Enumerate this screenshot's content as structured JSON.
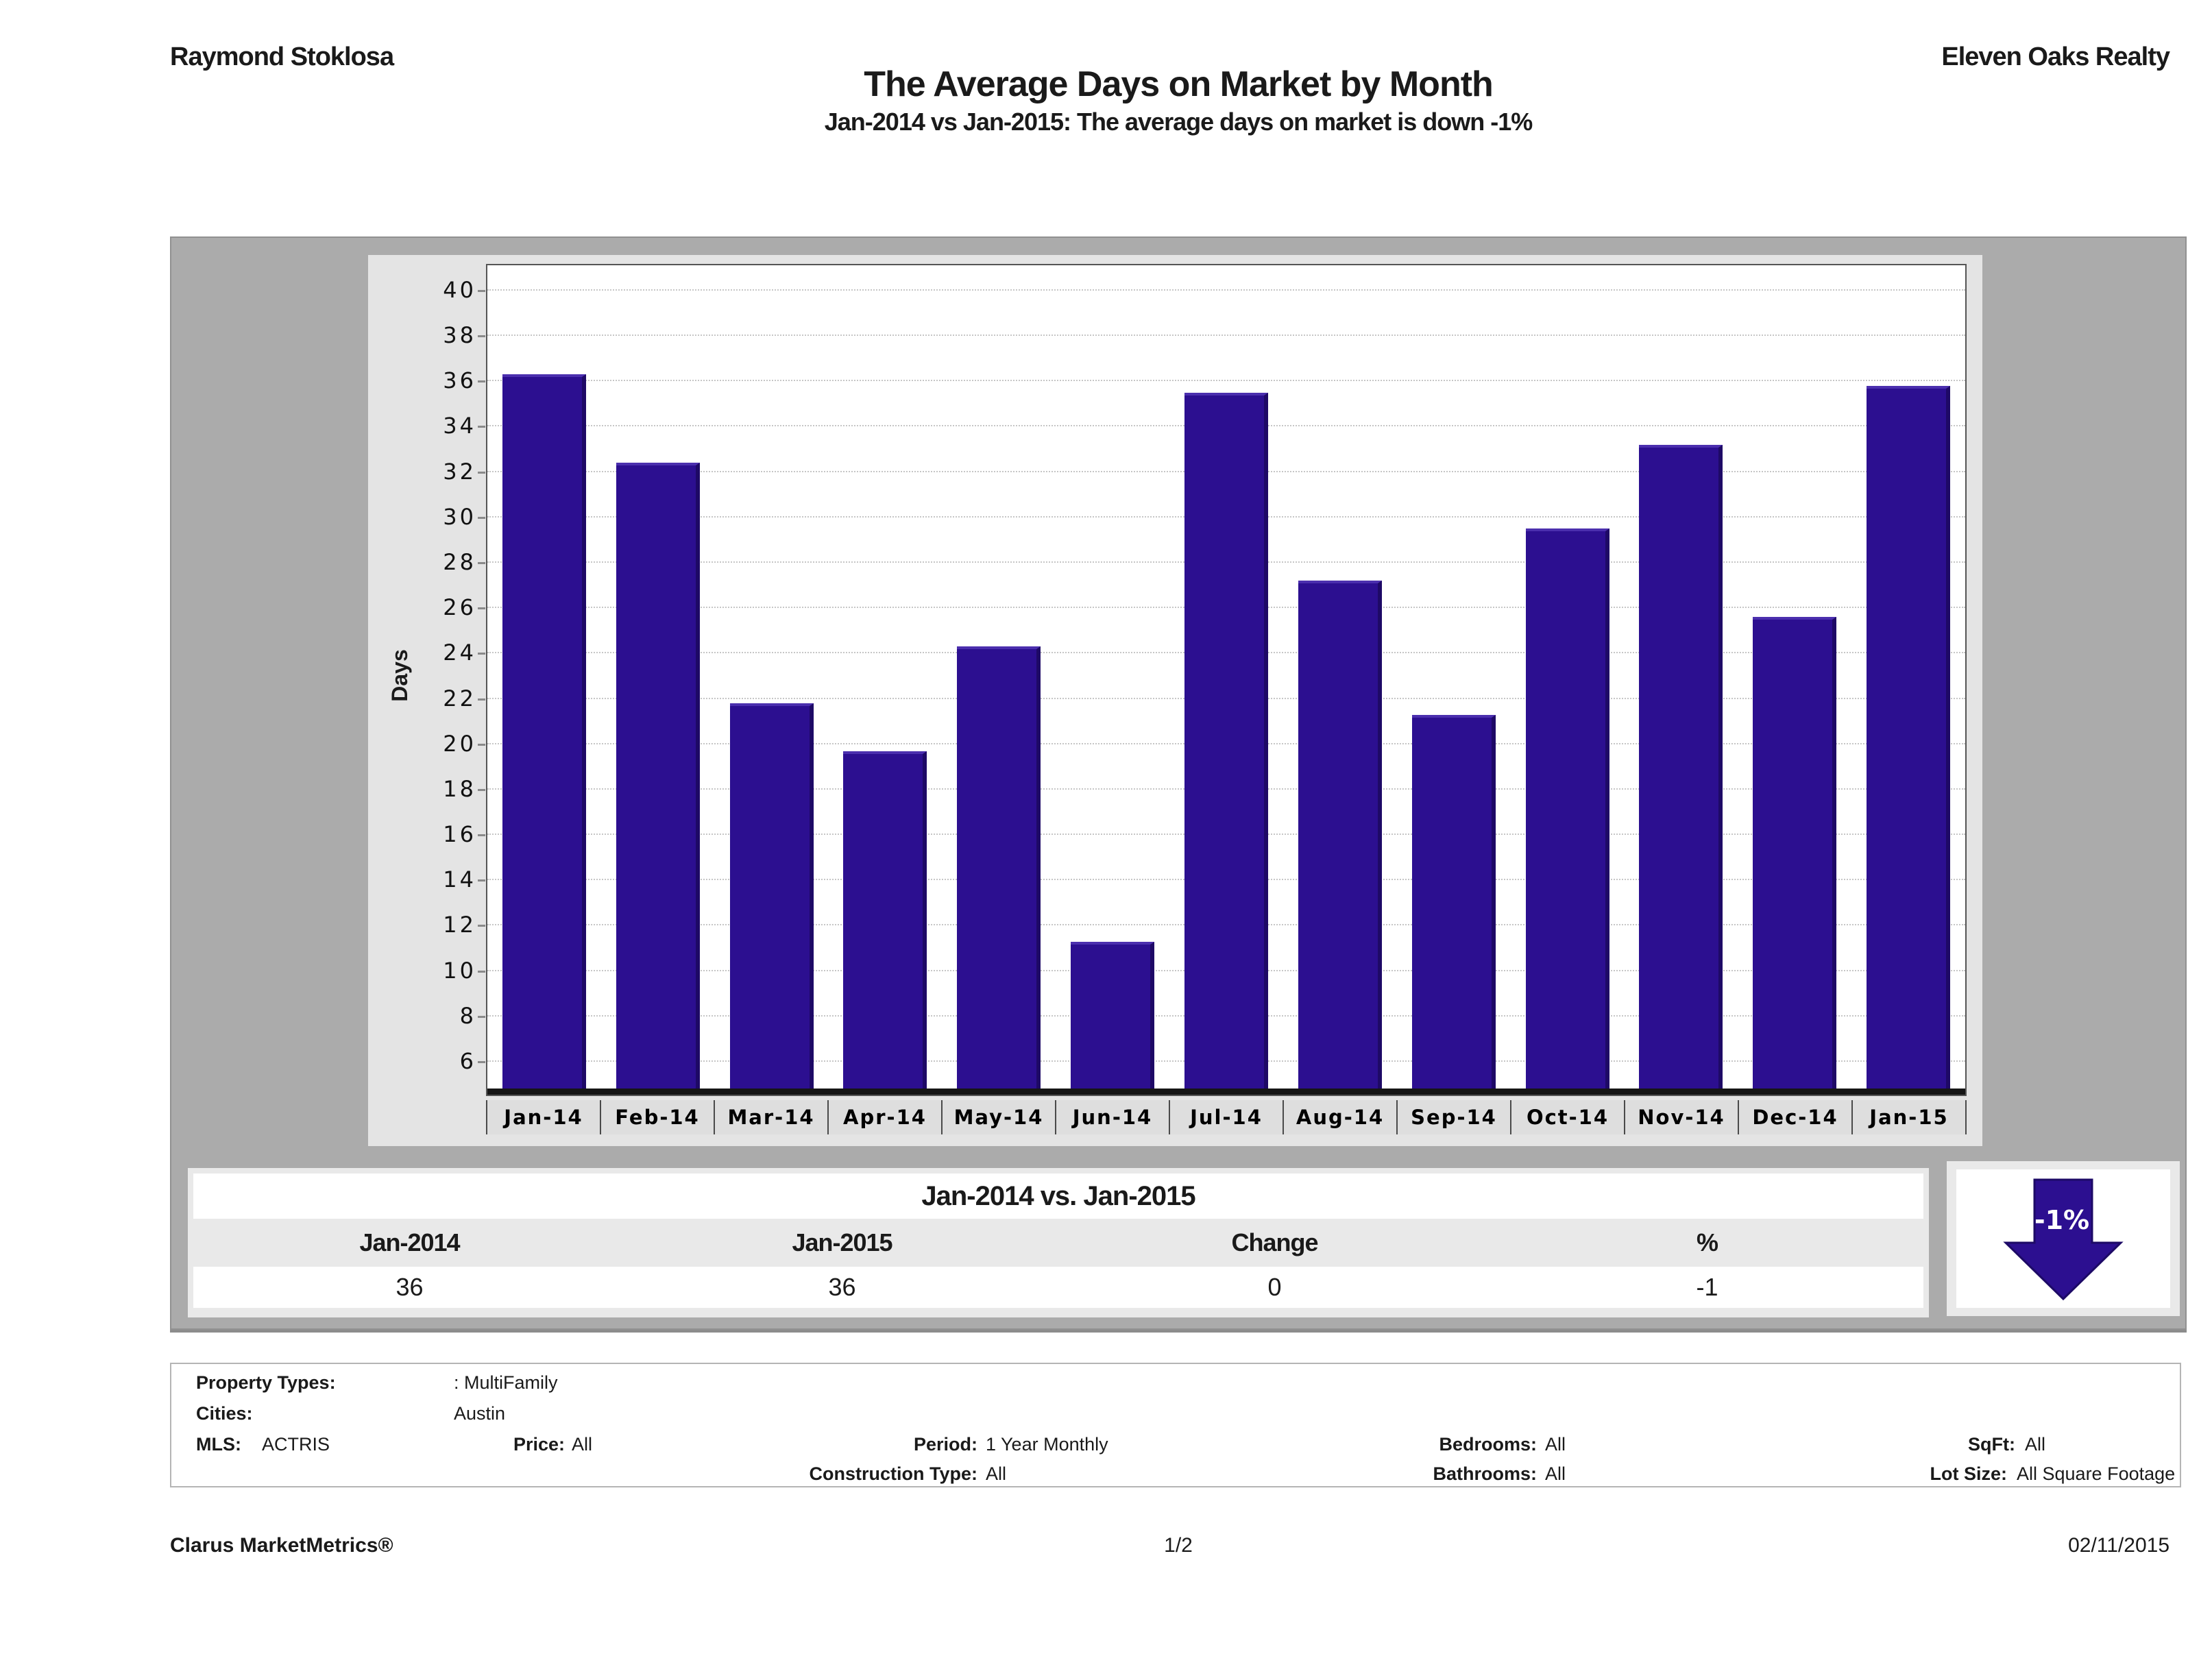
{
  "header": {
    "agent": "Raymond Stoklosa",
    "company": "Eleven Oaks Realty"
  },
  "title": "The Average Days on Market by Month",
  "subtitle": "Jan-2014 vs Jan-2015: The average days on market is down -1%",
  "chart_data": {
    "type": "bar",
    "title": "The Average Days on Market by Month",
    "categories": [
      "Jan-14",
      "Feb-14",
      "Mar-14",
      "Apr-14",
      "May-14",
      "Jun-14",
      "Jul-14",
      "Aug-14",
      "Sep-14",
      "Oct-14",
      "Nov-14",
      "Dec-14",
      "Jan-15"
    ],
    "values": [
      36.3,
      32.4,
      21.8,
      19.7,
      24.3,
      11.3,
      35.5,
      27.2,
      21.3,
      29.5,
      33.2,
      25.6,
      35.8
    ],
    "xlabel": "",
    "ylabel": "Days",
    "ylim": [
      4.8,
      41.3
    ],
    "yticks": [
      6,
      8,
      10,
      12,
      14,
      16,
      18,
      20,
      22,
      24,
      26,
      28,
      30,
      32,
      34,
      36,
      38,
      40
    ],
    "grid": "horizontal-dotted",
    "legend": "none",
    "bar_color": "#2c0f90"
  },
  "comparison_table": {
    "title": "Jan-2014 vs. Jan-2015",
    "columns": [
      "Jan-2014",
      "Jan-2015",
      "Change",
      "%"
    ],
    "values": [
      "36",
      "36",
      "0",
      "-1"
    ]
  },
  "change_indicator": {
    "label": "-1%",
    "direction": "down",
    "color": "#2c0f90"
  },
  "filters": {
    "property_types_label": "Property Types:",
    "property_types_value": ": MultiFamily",
    "cities_label": "Cities:",
    "cities_value": "Austin",
    "mls_label": "MLS:",
    "mls_value": "ACTRIS",
    "price_label": "Price:",
    "price_value": "All",
    "period_label": "Period:",
    "period_value": "1 Year Monthly",
    "bedrooms_label": "Bedrooms:",
    "bedrooms_value": "All",
    "sqft_label": "SqFt:",
    "sqft_value": "All",
    "construction_label": "Construction Type:",
    "construction_value": "All",
    "bathrooms_label": "Bathrooms:",
    "bathrooms_value": "All",
    "lot_size_label": "Lot Size:",
    "lot_size_value": "All Square Footage"
  },
  "footer": {
    "left": "Clarus MarketMetrics®",
    "center": "1/2",
    "right": "02/11/2015"
  }
}
